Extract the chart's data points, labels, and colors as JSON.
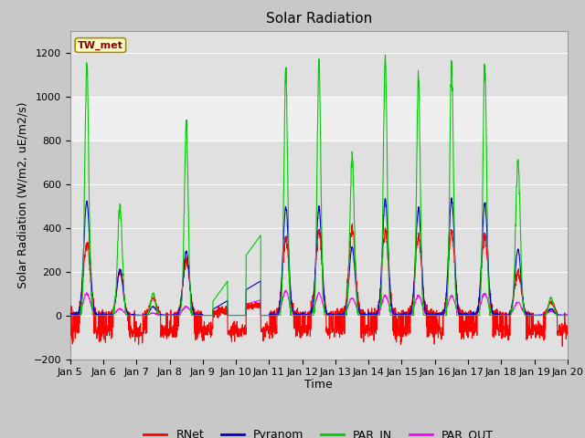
{
  "title": "Solar Radiation",
  "ylabel": "Solar Radiation (W/m2, uE/m2/s)",
  "xlabel": "Time",
  "ylim": [
    -200,
    1300
  ],
  "yticks": [
    -200,
    0,
    200,
    400,
    600,
    800,
    1000,
    1200
  ],
  "xlim": [
    0,
    15
  ],
  "xtick_labels": [
    "Jan 5",
    "Jan 6",
    "Jan 7",
    "Jan 8",
    "Jan 9",
    "Jan 10",
    "Jan 11",
    "Jan 12",
    "Jan 13",
    "Jan 14",
    "Jan 15",
    "Jan 16",
    "Jan 17",
    "Jan 18",
    "Jan 19",
    "Jan 20"
  ],
  "station_label": "TW_met",
  "legend_entries": [
    "RNet",
    "Pyranom",
    "PAR_IN",
    "PAR_OUT"
  ],
  "line_colors": {
    "RNet": "#ff0000",
    "Pyranom": "#0000cc",
    "PAR_IN": "#00cc00",
    "PAR_OUT": "#ff00ff"
  },
  "fig_facecolor": "#c8c8c8",
  "ax_facecolor": "#e0e0e0",
  "shaded_band": [
    800,
    1000
  ],
  "shaded_band_color": "#ffffff",
  "shaded_band_alpha": 0.5,
  "grid_color": "#ffffff",
  "title_fontsize": 11,
  "axis_fontsize": 9,
  "tick_fontsize": 8
}
